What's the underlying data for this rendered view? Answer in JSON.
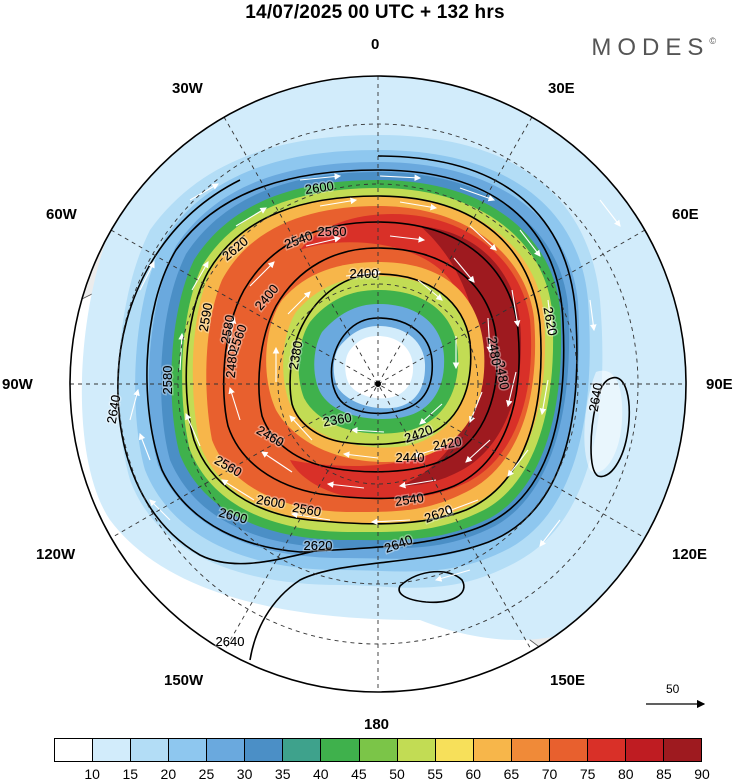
{
  "header": {
    "title": "14/07/2025  00 UTC  + 132 hrs",
    "brand": "MODES",
    "brand_mark": "©"
  },
  "map": {
    "projection": "south polar stereographic",
    "longitude_labels": {
      "top": "0",
      "top_right": "30E",
      "upper_right": "60E",
      "right": "90E",
      "lower_right": "120E",
      "bottom_right": "150E",
      "bottom": "180",
      "bottom_left": "150W",
      "lower_left": "120W",
      "left": "90W",
      "upper_left": "60W",
      "top_left": "30W"
    },
    "contour_labels": [
      "2600",
      "2560",
      "2540",
      "2620",
      "2580",
      "2590",
      "2560",
      "2400",
      "2400",
      "2420",
      "2480",
      "2620",
      "2580",
      "2360",
      "2460",
      "2440",
      "2420",
      "2380",
      "2560",
      "2480",
      "2600",
      "2540",
      "2560",
      "2620",
      "2640",
      "2600",
      "2620",
      "2640",
      "2640",
      "2640",
      "2480"
    ],
    "shading_field": "wind speed",
    "contour_field": "geopotential height",
    "vector_reference_value": "50"
  },
  "colorbar": {
    "colors": [
      "#ffffff",
      "#d2ecfb",
      "#b3ddf6",
      "#8ec7ef",
      "#6aa9de",
      "#4b8fc6",
      "#3ea28c",
      "#3fb14c",
      "#7bc548",
      "#c2dc54",
      "#f7e05a",
      "#f7b64a",
      "#f08a38",
      "#e8602e",
      "#d93028",
      "#bf1c22",
      "#9e1a1f"
    ],
    "labels": [
      "10",
      "15",
      "20",
      "25",
      "30",
      "35",
      "40",
      "45",
      "50",
      "55",
      "60",
      "65",
      "70",
      "75",
      "80",
      "85",
      "90"
    ]
  }
}
